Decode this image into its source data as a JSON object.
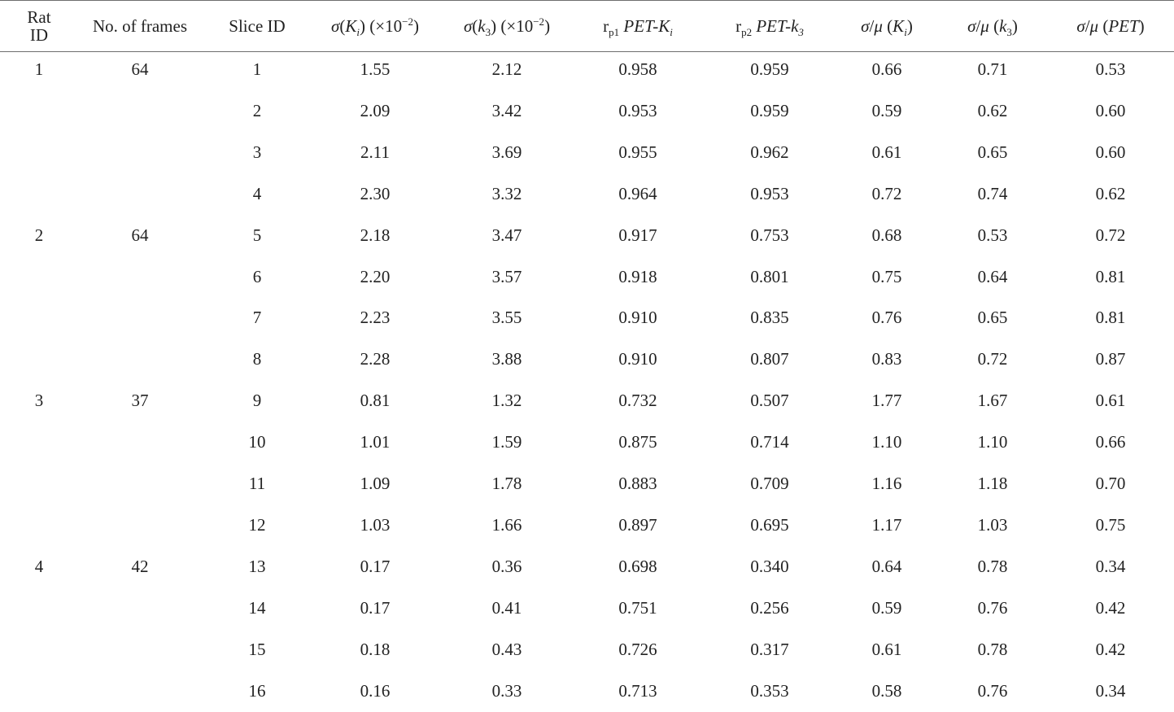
{
  "table": {
    "headers": {
      "rat_id": "Rat ID",
      "frames": "No. of frames",
      "slice": "Slice ID",
      "sigma_ki": "σ(Ki) (×10−2)",
      "sigma_k3": "σ(k3) (×10−2)",
      "rp1": "rp1 PET-Ki",
      "rp2": "rp2 PET-k3",
      "cv_ki": "σ/μ (Ki)",
      "cv_k3": "σ/μ (k3)",
      "cv_pet": "σ/μ (PET)"
    },
    "rows": [
      {
        "rat": "1",
        "frames": "64",
        "slice": "1",
        "sigma_ki": "1.55",
        "sigma_k3": "2.12",
        "rp1": "0.958",
        "rp2": "0.959",
        "cv_ki": "0.66",
        "cv_k3": "0.71",
        "cv_pet": "0.53"
      },
      {
        "rat": "",
        "frames": "",
        "slice": "2",
        "sigma_ki": "2.09",
        "sigma_k3": "3.42",
        "rp1": "0.953",
        "rp2": "0.959",
        "cv_ki": "0.59",
        "cv_k3": "0.62",
        "cv_pet": "0.60"
      },
      {
        "rat": "",
        "frames": "",
        "slice": "3",
        "sigma_ki": "2.11",
        "sigma_k3": "3.69",
        "rp1": "0.955",
        "rp2": "0.962",
        "cv_ki": "0.61",
        "cv_k3": "0.65",
        "cv_pet": "0.60"
      },
      {
        "rat": "",
        "frames": "",
        "slice": "4",
        "sigma_ki": "2.30",
        "sigma_k3": "3.32",
        "rp1": "0.964",
        "rp2": "0.953",
        "cv_ki": "0.72",
        "cv_k3": "0.74",
        "cv_pet": "0.62"
      },
      {
        "rat": "2",
        "frames": "64",
        "slice": "5",
        "sigma_ki": "2.18",
        "sigma_k3": "3.47",
        "rp1": "0.917",
        "rp2": "0.753",
        "cv_ki": "0.68",
        "cv_k3": "0.53",
        "cv_pet": "0.72"
      },
      {
        "rat": "",
        "frames": "",
        "slice": "6",
        "sigma_ki": "2.20",
        "sigma_k3": "3.57",
        "rp1": "0.918",
        "rp2": "0.801",
        "cv_ki": "0.75",
        "cv_k3": "0.64",
        "cv_pet": "0.81"
      },
      {
        "rat": "",
        "frames": "",
        "slice": "7",
        "sigma_ki": "2.23",
        "sigma_k3": "3.55",
        "rp1": "0.910",
        "rp2": "0.835",
        "cv_ki": "0.76",
        "cv_k3": "0.65",
        "cv_pet": "0.81"
      },
      {
        "rat": "",
        "frames": "",
        "slice": "8",
        "sigma_ki": "2.28",
        "sigma_k3": "3.88",
        "rp1": "0.910",
        "rp2": "0.807",
        "cv_ki": "0.83",
        "cv_k3": "0.72",
        "cv_pet": "0.87"
      },
      {
        "rat": "3",
        "frames": "37",
        "slice": "9",
        "sigma_ki": "0.81",
        "sigma_k3": "1.32",
        "rp1": "0.732",
        "rp2": "0.507",
        "cv_ki": "1.77",
        "cv_k3": "1.67",
        "cv_pet": "0.61"
      },
      {
        "rat": "",
        "frames": "",
        "slice": "10",
        "sigma_ki": "1.01",
        "sigma_k3": "1.59",
        "rp1": "0.875",
        "rp2": "0.714",
        "cv_ki": "1.10",
        "cv_k3": "1.10",
        "cv_pet": "0.66"
      },
      {
        "rat": "",
        "frames": "",
        "slice": "11",
        "sigma_ki": "1.09",
        "sigma_k3": "1.78",
        "rp1": "0.883",
        "rp2": "0.709",
        "cv_ki": "1.16",
        "cv_k3": "1.18",
        "cv_pet": "0.70"
      },
      {
        "rat": "",
        "frames": "",
        "slice": "12",
        "sigma_ki": "1.03",
        "sigma_k3": "1.66",
        "rp1": "0.897",
        "rp2": "0.695",
        "cv_ki": "1.17",
        "cv_k3": "1.03",
        "cv_pet": "0.75"
      },
      {
        "rat": "4",
        "frames": "42",
        "slice": "13",
        "sigma_ki": "0.17",
        "sigma_k3": "0.36",
        "rp1": "0.698",
        "rp2": "0.340",
        "cv_ki": "0.64",
        "cv_k3": "0.78",
        "cv_pet": "0.34"
      },
      {
        "rat": "",
        "frames": "",
        "slice": "14",
        "sigma_ki": "0.17",
        "sigma_k3": "0.41",
        "rp1": "0.751",
        "rp2": "0.256",
        "cv_ki": "0.59",
        "cv_k3": "0.76",
        "cv_pet": "0.42"
      },
      {
        "rat": "",
        "frames": "",
        "slice": "15",
        "sigma_ki": "0.18",
        "sigma_k3": "0.43",
        "rp1": "0.726",
        "rp2": "0.317",
        "cv_ki": "0.61",
        "cv_k3": "0.78",
        "cv_pet": "0.42"
      },
      {
        "rat": "",
        "frames": "",
        "slice": "16",
        "sigma_ki": "0.16",
        "sigma_k3": "0.33",
        "rp1": "0.713",
        "rp2": "0.353",
        "cv_ki": "0.58",
        "cv_k3": "0.76",
        "cv_pet": "0.34"
      }
    ]
  }
}
